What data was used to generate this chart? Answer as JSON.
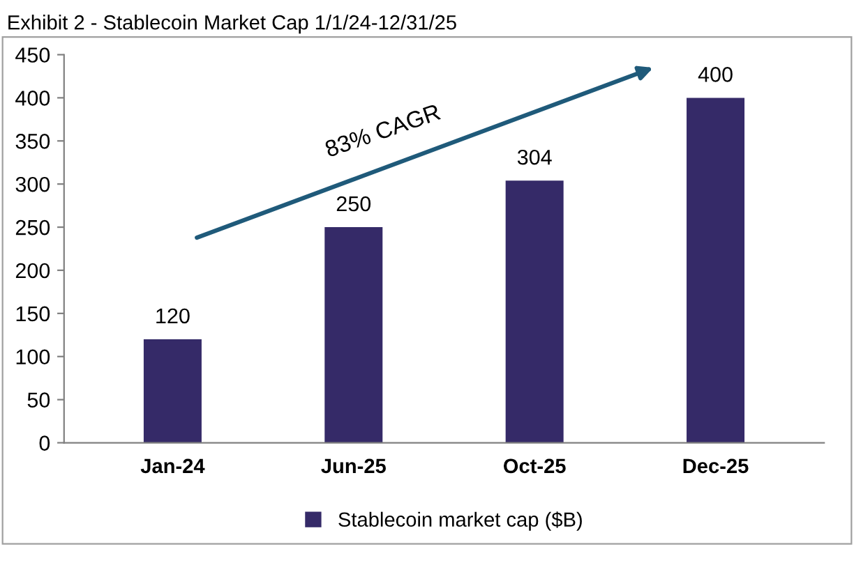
{
  "chart_data": {
    "type": "bar",
    "title": "Exhibit 2 - Stablecoin Market Cap 1/1/24-12/31/25",
    "categories": [
      "Jan-24",
      "Jun-25",
      "Oct-25",
      "Dec-25"
    ],
    "series": [
      {
        "name": "Stablecoin market cap ($B)",
        "color": "#352a68",
        "values": [
          120,
          250,
          304,
          400
        ]
      }
    ],
    "ylim": [
      0,
      450
    ],
    "yticks": [
      0,
      50,
      100,
      150,
      200,
      250,
      300,
      350,
      400,
      450
    ],
    "data_labels": true,
    "grid": false,
    "legend": "bottom",
    "annotations": [
      "83% CAGR"
    ]
  }
}
